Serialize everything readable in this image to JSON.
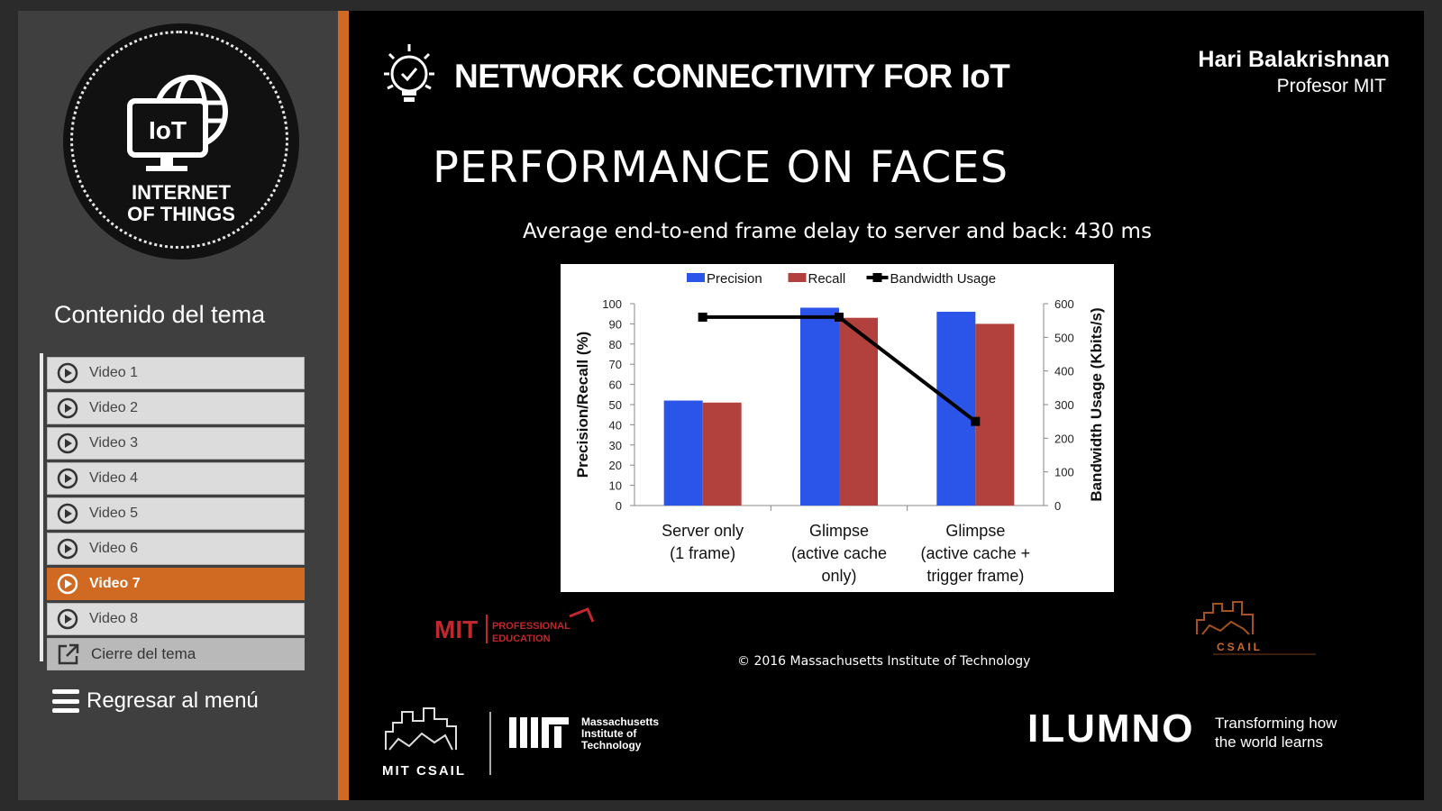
{
  "sidebar": {
    "logo": {
      "line1": "INTERNET",
      "line2": "OF THINGS",
      "badge": "IoT"
    },
    "section_title": "Contenido del tema",
    "items": [
      {
        "label": "Video 1"
      },
      {
        "label": "Video 2"
      },
      {
        "label": "Video 3"
      },
      {
        "label": "Video 4"
      },
      {
        "label": "Video 5"
      },
      {
        "label": "Video 6"
      },
      {
        "label": "Video 7",
        "active": true
      },
      {
        "label": "Video 8"
      }
    ],
    "close_label": "Cierre del tema",
    "back_label": "Regresar al menú"
  },
  "header": {
    "course_title": "NETWORK CONNECTIVITY FOR IoT",
    "professor_name": "Hari Balakrishnan",
    "professor_role": "Profesor MIT"
  },
  "slide": {
    "title": "PERFORMANCE ON FACES",
    "subtitle": "Average end-to-end frame delay to server and back: 430 ms",
    "copyright": "© 2016 Massachusetts Institute of Technology",
    "logo_pe": {
      "mit": "MIT",
      "line1": "PROFESSIONAL",
      "line2": "EDUCATION"
    },
    "logo_csail_small": "CSAIL"
  },
  "footer": {
    "csail_label": "MIT CSAIL",
    "mit_line1": "Massachusetts",
    "mit_line2": "Institute of",
    "mit_line3": "Technology",
    "ilumno": "ILUMNO",
    "tagline_line1": "Transforming how",
    "tagline_line2": "the world learns"
  },
  "chart_data": {
    "type": "bar",
    "categories": [
      [
        "Server only",
        "(1 frame)"
      ],
      [
        "Glimpse",
        "(active cache",
        "only)"
      ],
      [
        "Glimpse",
        "(active cache +",
        "trigger frame)"
      ]
    ],
    "series": [
      {
        "name": "Precision",
        "values": [
          52,
          98,
          96
        ],
        "color": "#2b55e8"
      },
      {
        "name": "Recall",
        "values": [
          51,
          93,
          90
        ],
        "color": "#b2403d"
      }
    ],
    "line_series": {
      "name": "Bandwidth Usage",
      "values": [
        560,
        560,
        250
      ],
      "color": "#000000",
      "axis": "right"
    },
    "ylabel": "Precision/Recall (%)",
    "y2label": "Bandwidth Usage (Kbits/s)",
    "ylim": [
      0,
      100
    ],
    "y2lim": [
      0,
      600
    ],
    "yticks": [
      0,
      10,
      20,
      30,
      40,
      50,
      60,
      70,
      80,
      90,
      100
    ],
    "y2ticks": [
      0,
      100,
      200,
      300,
      400,
      500,
      600
    ],
    "legend_position": "top",
    "grid": false
  },
  "colors": {
    "accent": "#d06a22",
    "precision": "#2b55e8",
    "recall": "#b2403d"
  }
}
